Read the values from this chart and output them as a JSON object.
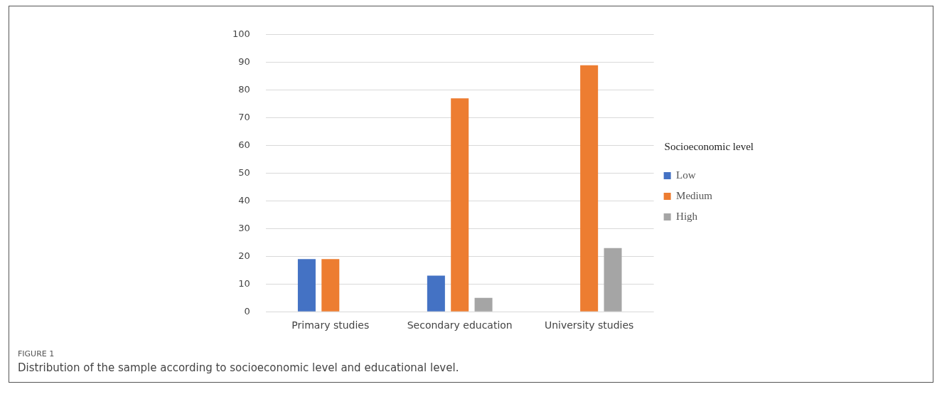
{
  "chart_data": {
    "type": "bar",
    "categories": [
      "Primary studies",
      "Secondary education",
      "University studies"
    ],
    "series": [
      {
        "name": "Low",
        "color": "#4472c4",
        "values": [
          19,
          13,
          0
        ]
      },
      {
        "name": "Medium",
        "color": "#ed7d31",
        "values": [
          19,
          77,
          89
        ]
      },
      {
        "name": "High",
        "color": "#a5a5a5",
        "values": [
          0,
          5,
          23
        ]
      }
    ],
    "legend_title": "Socioeconomic level",
    "legend": "right",
    "ylim": [
      0,
      100
    ],
    "yticks": [
      0,
      10,
      20,
      30,
      40,
      50,
      60,
      70,
      80,
      90,
      100
    ],
    "grid": "y",
    "annotations": [
      "FIGURE 1",
      "Distribution of the sample according to socioeconomic level and educational level."
    ]
  }
}
